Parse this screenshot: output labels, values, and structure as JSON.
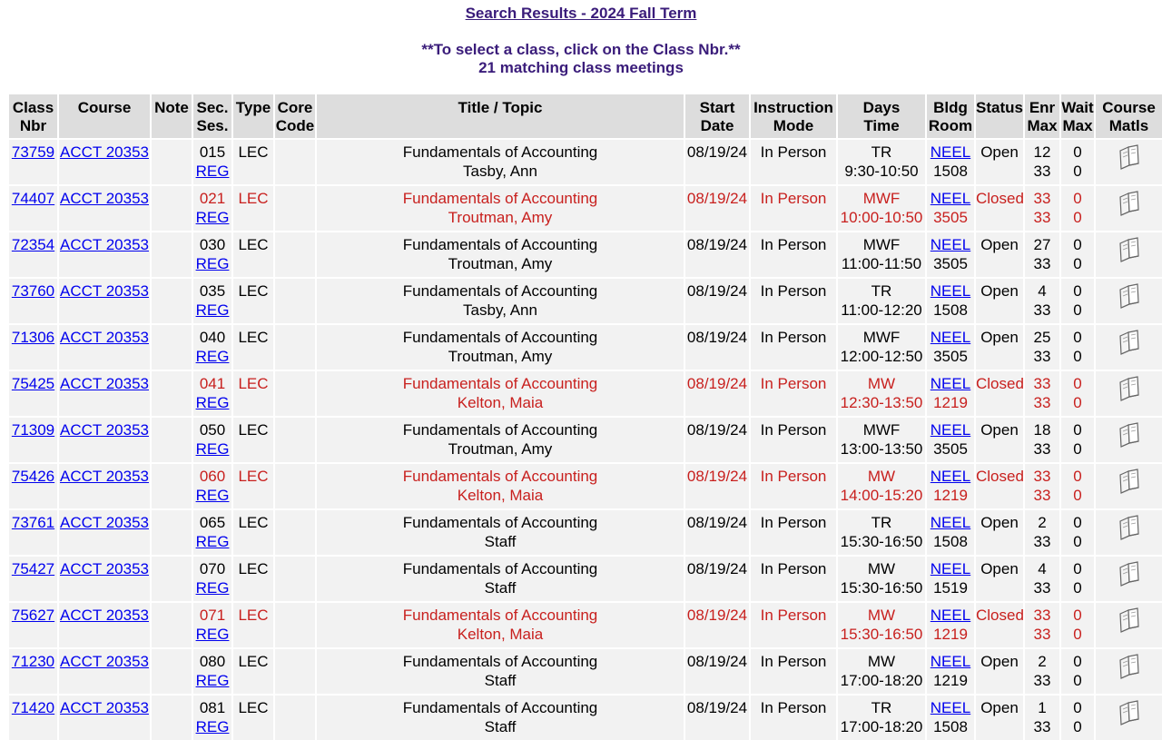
{
  "header": {
    "title": "Search Results - 2024 Fall Term",
    "instruction": "**To select a class, click on the Class Nbr.**",
    "count": "21 matching class meetings"
  },
  "columns": {
    "class_nbr": [
      "Class",
      "Nbr"
    ],
    "course": "Course",
    "note": "Note",
    "sec_ses": [
      "Sec.",
      "Ses."
    ],
    "type": "Type",
    "core_code": [
      "Core",
      "Code"
    ],
    "title_topic": "Title / Topic",
    "start_date": [
      "Start",
      "Date"
    ],
    "instruction_mode": [
      "Instruction",
      "Mode"
    ],
    "days_time": [
      "Days",
      "Time"
    ],
    "bldg_room": [
      "Bldg",
      "Room"
    ],
    "status": "Status",
    "enr_max": [
      "Enr",
      "Max"
    ],
    "wait_max": [
      "Wait",
      "Max"
    ],
    "course_matls": [
      "Course",
      "Matls"
    ]
  },
  "rows": [
    {
      "nbr": "73759",
      "course": "ACCT 20353",
      "sec": "015",
      "ses": "REG",
      "type": "LEC",
      "title": "Fundamentals of Accounting",
      "instructor": "Tasby, Ann",
      "start": "08/19/24",
      "mode": "In Person",
      "days": "TR",
      "time": "9:30-10:50",
      "bldg": "NEEL",
      "room": "1508",
      "status": "Open",
      "enr": "12",
      "max": "33",
      "wait": "0",
      "wmax": "0"
    },
    {
      "nbr": "74407",
      "course": "ACCT 20353",
      "sec": "021",
      "ses": "REG",
      "type": "LEC",
      "title": "Fundamentals of Accounting",
      "instructor": "Troutman, Amy",
      "start": "08/19/24",
      "mode": "In Person",
      "days": "MWF",
      "time": "10:00-10:50",
      "bldg": "NEEL",
      "room": "3505",
      "status": "Closed",
      "enr": "33",
      "max": "33",
      "wait": "0",
      "wmax": "0"
    },
    {
      "nbr": "72354",
      "course": "ACCT 20353",
      "sec": "030",
      "ses": "REG",
      "type": "LEC",
      "title": "Fundamentals of Accounting",
      "instructor": "Troutman, Amy",
      "start": "08/19/24",
      "mode": "In Person",
      "days": "MWF",
      "time": "11:00-11:50",
      "bldg": "NEEL",
      "room": "3505",
      "status": "Open",
      "enr": "27",
      "max": "33",
      "wait": "0",
      "wmax": "0"
    },
    {
      "nbr": "73760",
      "course": "ACCT 20353",
      "sec": "035",
      "ses": "REG",
      "type": "LEC",
      "title": "Fundamentals of Accounting",
      "instructor": "Tasby, Ann",
      "start": "08/19/24",
      "mode": "In Person",
      "days": "TR",
      "time": "11:00-12:20",
      "bldg": "NEEL",
      "room": "1508",
      "status": "Open",
      "enr": "4",
      "max": "33",
      "wait": "0",
      "wmax": "0"
    },
    {
      "nbr": "71306",
      "course": "ACCT 20353",
      "sec": "040",
      "ses": "REG",
      "type": "LEC",
      "title": "Fundamentals of Accounting",
      "instructor": "Troutman, Amy",
      "start": "08/19/24",
      "mode": "In Person",
      "days": "MWF",
      "time": "12:00-12:50",
      "bldg": "NEEL",
      "room": "3505",
      "status": "Open",
      "enr": "25",
      "max": "33",
      "wait": "0",
      "wmax": "0"
    },
    {
      "nbr": "75425",
      "course": "ACCT 20353",
      "sec": "041",
      "ses": "REG",
      "type": "LEC",
      "title": "Fundamentals of Accounting",
      "instructor": "Kelton, Maia",
      "start": "08/19/24",
      "mode": "In Person",
      "days": "MW",
      "time": "12:30-13:50",
      "bldg": "NEEL",
      "room": "1219",
      "status": "Closed",
      "enr": "33",
      "max": "33",
      "wait": "0",
      "wmax": "0"
    },
    {
      "nbr": "71309",
      "course": "ACCT 20353",
      "sec": "050",
      "ses": "REG",
      "type": "LEC",
      "title": "Fundamentals of Accounting",
      "instructor": "Troutman, Amy",
      "start": "08/19/24",
      "mode": "In Person",
      "days": "MWF",
      "time": "13:00-13:50",
      "bldg": "NEEL",
      "room": "3505",
      "status": "Open",
      "enr": "18",
      "max": "33",
      "wait": "0",
      "wmax": "0"
    },
    {
      "nbr": "75426",
      "course": "ACCT 20353",
      "sec": "060",
      "ses": "REG",
      "type": "LEC",
      "title": "Fundamentals of Accounting",
      "instructor": "Kelton, Maia",
      "start": "08/19/24",
      "mode": "In Person",
      "days": "MW",
      "time": "14:00-15:20",
      "bldg": "NEEL",
      "room": "1219",
      "status": "Closed",
      "enr": "33",
      "max": "33",
      "wait": "0",
      "wmax": "0"
    },
    {
      "nbr": "73761",
      "course": "ACCT 20353",
      "sec": "065",
      "ses": "REG",
      "type": "LEC",
      "title": "Fundamentals of Accounting",
      "instructor": "Staff",
      "start": "08/19/24",
      "mode": "In Person",
      "days": "TR",
      "time": "15:30-16:50",
      "bldg": "NEEL",
      "room": "1508",
      "status": "Open",
      "enr": "2",
      "max": "33",
      "wait": "0",
      "wmax": "0"
    },
    {
      "nbr": "75427",
      "course": "ACCT 20353",
      "sec": "070",
      "ses": "REG",
      "type": "LEC",
      "title": "Fundamentals of Accounting",
      "instructor": "Staff",
      "start": "08/19/24",
      "mode": "In Person",
      "days": "MW",
      "time": "15:30-16:50",
      "bldg": "NEEL",
      "room": "1519",
      "status": "Open",
      "enr": "4",
      "max": "33",
      "wait": "0",
      "wmax": "0"
    },
    {
      "nbr": "75627",
      "course": "ACCT 20353",
      "sec": "071",
      "ses": "REG",
      "type": "LEC",
      "title": "Fundamentals of Accounting",
      "instructor": "Kelton, Maia",
      "start": "08/19/24",
      "mode": "In Person",
      "days": "MW",
      "time": "15:30-16:50",
      "bldg": "NEEL",
      "room": "1219",
      "status": "Closed",
      "enr": "33",
      "max": "33",
      "wait": "0",
      "wmax": "0"
    },
    {
      "nbr": "71230",
      "course": "ACCT 20353",
      "sec": "080",
      "ses": "REG",
      "type": "LEC",
      "title": "Fundamentals of Accounting",
      "instructor": "Staff",
      "start": "08/19/24",
      "mode": "In Person",
      "days": "MW",
      "time": "17:00-18:20",
      "bldg": "NEEL",
      "room": "1219",
      "status": "Open",
      "enr": "2",
      "max": "33",
      "wait": "0",
      "wmax": "0"
    },
    {
      "nbr": "71420",
      "course": "ACCT 20353",
      "sec": "081",
      "ses": "REG",
      "type": "LEC",
      "title": "Fundamentals of Accounting",
      "instructor": "Staff",
      "start": "08/19/24",
      "mode": "In Person",
      "days": "TR",
      "time": "17:00-18:20",
      "bldg": "NEEL",
      "room": "1508",
      "status": "Open",
      "enr": "1",
      "max": "33",
      "wait": "0",
      "wmax": "0"
    }
  ],
  "icons": {
    "course_matls": "book-icon"
  },
  "colors": {
    "header_text": "#3a1c7a",
    "closed_text": "#c8201e",
    "link": "#0000ee",
    "row_bg": "#f2f2f2",
    "header_bg": "#dddddd"
  }
}
